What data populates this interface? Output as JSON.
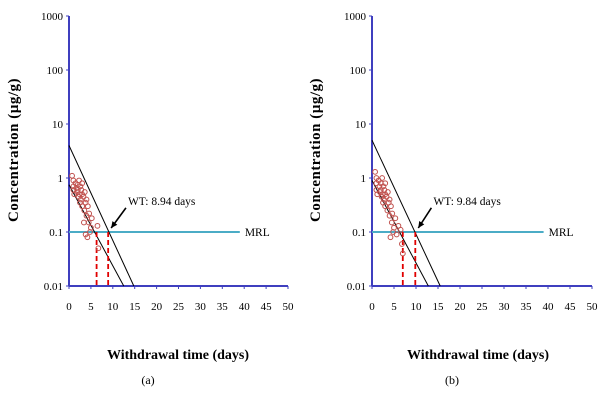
{
  "chart_data": [
    {
      "type": "scatter",
      "panel_label": "(a)",
      "ylabel": "Concentration (µg/g)",
      "xlabel": "Withdrawal  time (days)",
      "xlim": [
        0,
        50
      ],
      "ylim": [
        0.01,
        1000
      ],
      "yscale": "log",
      "x_ticks": [
        "0",
        "5",
        "10",
        "15",
        "20",
        "25",
        "30",
        "35",
        "40",
        "45",
        "50"
      ],
      "y_ticks": [
        "0.01",
        "0.1",
        "1",
        "10",
        "100",
        "1000"
      ],
      "grid": false,
      "mrl": {
        "value": 0.1,
        "label": "MRL",
        "x_end": 39,
        "color": "#4bacc6"
      },
      "withdrawal_time": {
        "label": "WT: 8.94 days",
        "value": 8.94,
        "arrow_from": [
          13,
          0.28
        ]
      },
      "secondary_drop_x": 6.3,
      "fit_lines": [
        {
          "points": [
            [
              0,
              4.0
            ],
            [
              14.8,
              0.01
            ]
          ]
        },
        {
          "points": [
            [
              0,
              0.75
            ],
            [
              12.5,
              0.01
            ]
          ]
        }
      ],
      "points": [
        [
          0.7,
          1.1
        ],
        [
          1,
          0.9
        ],
        [
          1,
          0.7
        ],
        [
          1,
          0.6
        ],
        [
          1.2,
          0.5
        ],
        [
          1.5,
          0.8
        ],
        [
          1.7,
          0.65
        ],
        [
          1.8,
          0.55
        ],
        [
          2,
          0.75
        ],
        [
          2,
          0.6
        ],
        [
          2.2,
          0.45
        ],
        [
          2.3,
          0.9
        ],
        [
          2.4,
          0.5
        ],
        [
          2.5,
          0.35
        ],
        [
          2.6,
          0.7
        ],
        [
          2.7,
          0.4
        ],
        [
          2.8,
          0.6
        ],
        [
          3,
          0.8
        ],
        [
          3,
          0.5
        ],
        [
          3,
          0.3
        ],
        [
          3.3,
          0.45
        ],
        [
          3.5,
          0.25
        ],
        [
          3.6,
          0.55
        ],
        [
          3.8,
          0.35
        ],
        [
          4,
          0.4
        ],
        [
          4,
          0.2
        ],
        [
          4.3,
          0.3
        ],
        [
          4.5,
          0.15
        ],
        [
          4.6,
          0.22
        ],
        [
          4.8,
          0.1
        ],
        [
          5,
          0.12
        ],
        [
          5.2,
          0.18
        ],
        [
          3.4,
          0.15
        ],
        [
          3.8,
          0.09
        ],
        [
          6.5,
          0.13
        ],
        [
          6.7,
          0.05
        ],
        [
          4.2,
          0.08
        ]
      ],
      "marker_color": "#c0504d",
      "line_color": "#000000",
      "axis_color": "#3f3fbf"
    },
    {
      "type": "scatter",
      "panel_label": "(b)",
      "ylabel": "Concentration (µg/g)",
      "xlabel": "Withdrawal  time (days)",
      "xlim": [
        0,
        50
      ],
      "ylim": [
        0.01,
        1000
      ],
      "yscale": "log",
      "x_ticks": [
        "0",
        "5",
        "10",
        "15",
        "20",
        "25",
        "30",
        "35",
        "40",
        "45",
        "50"
      ],
      "y_ticks": [
        "0.01",
        "0.1",
        "1",
        "10",
        "100",
        "1000"
      ],
      "grid": false,
      "mrl": {
        "value": 0.1,
        "label": "MRL",
        "x_end": 39,
        "color": "#4bacc6"
      },
      "withdrawal_time": {
        "label": "WT: 9.84 days",
        "value": 9.84,
        "arrow_from": [
          13.5,
          0.28
        ]
      },
      "secondary_drop_x": 7.0,
      "fit_lines": [
        {
          "points": [
            [
              0,
              5.0
            ],
            [
              15.5,
              0.01
            ]
          ]
        },
        {
          "points": [
            [
              0,
              0.9
            ],
            [
              12.8,
              0.01
            ]
          ]
        }
      ],
      "points": [
        [
          0.7,
          1.3
        ],
        [
          1,
          1.0
        ],
        [
          1,
          0.8
        ],
        [
          1,
          0.6
        ],
        [
          1.2,
          0.5
        ],
        [
          1.5,
          0.9
        ],
        [
          1.7,
          0.7
        ],
        [
          1.8,
          0.55
        ],
        [
          2,
          0.8
        ],
        [
          2,
          0.6
        ],
        [
          2.2,
          0.45
        ],
        [
          2.3,
          1.0
        ],
        [
          2.4,
          0.5
        ],
        [
          2.5,
          0.35
        ],
        [
          2.6,
          0.7
        ],
        [
          2.7,
          0.4
        ],
        [
          2.8,
          0.6
        ],
        [
          3,
          0.8
        ],
        [
          3,
          0.5
        ],
        [
          3,
          0.3
        ],
        [
          3.3,
          0.45
        ],
        [
          3.5,
          0.25
        ],
        [
          3.6,
          0.55
        ],
        [
          3.8,
          0.35
        ],
        [
          4,
          0.4
        ],
        [
          4,
          0.2
        ],
        [
          4.3,
          0.3
        ],
        [
          4.5,
          0.15
        ],
        [
          4.6,
          0.22
        ],
        [
          4.8,
          0.1
        ],
        [
          5,
          0.12
        ],
        [
          5.3,
          0.18
        ],
        [
          5.6,
          0.09
        ],
        [
          6,
          0.13
        ],
        [
          6.5,
          0.11
        ],
        [
          6.8,
          0.06
        ],
        [
          7,
          0.04
        ],
        [
          4.2,
          0.08
        ]
      ],
      "marker_color": "#c0504d",
      "line_color": "#000000",
      "axis_color": "#3f3fbf"
    }
  ]
}
